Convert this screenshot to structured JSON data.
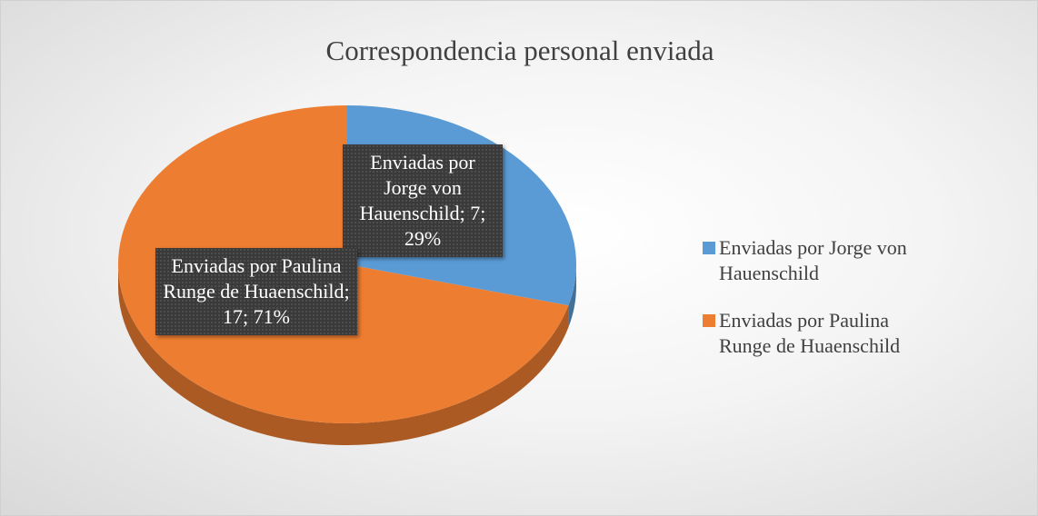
{
  "chart_data": {
    "type": "pie",
    "title": "Correspondencia personal enviada",
    "categories": [
      "Enviadas por Jorge von Hauenschild",
      "Enviadas por Paulina Runge de Huaenschild"
    ],
    "values": [
      7,
      17
    ],
    "value_labels": [
      "Enviadas por Jorge von Hauenschild; 7; 29%",
      "Enviadas por Paulina Runge de Huaenschild; 17; 71%"
    ],
    "colors": [
      "#5b9bd5",
      "#ed7d31"
    ],
    "legend": "right"
  }
}
